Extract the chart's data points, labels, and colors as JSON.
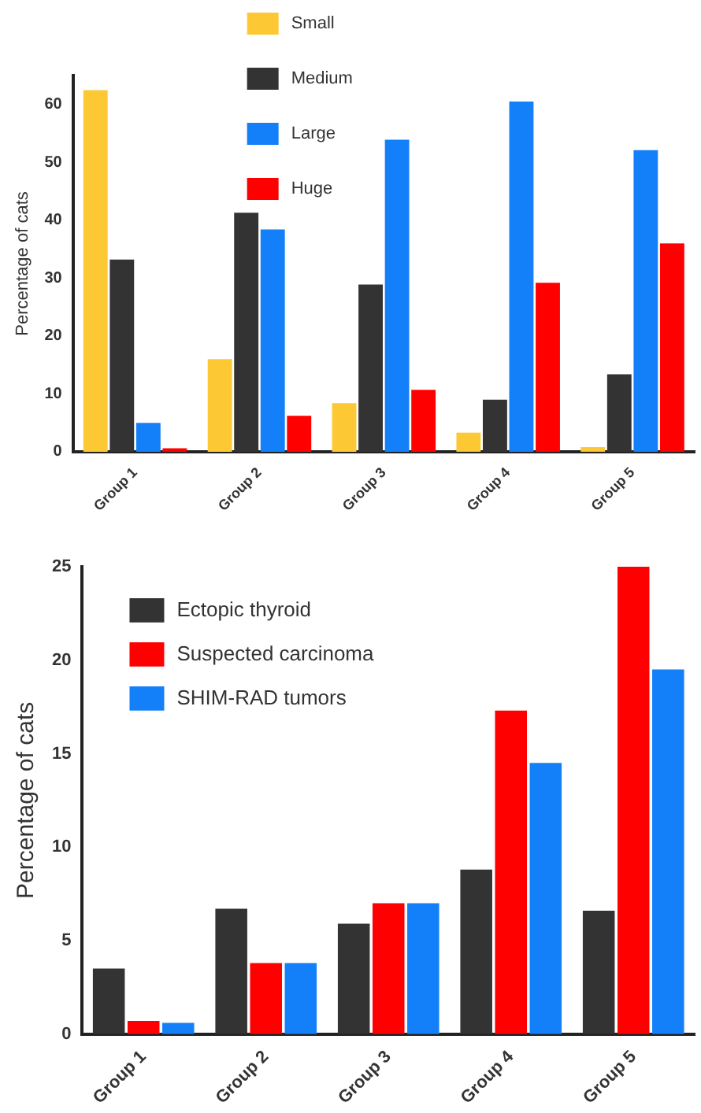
{
  "chart_data": [
    {
      "type": "bar",
      "ylabel": "Percentage of cats",
      "categories": [
        "Group 1",
        "Group 2",
        "Group 3",
        "Group 4",
        "Group 5"
      ],
      "series": [
        {
          "name": "Small",
          "color": "#fcc934",
          "values": [
            62.5,
            16,
            8.4,
            3.3,
            0.8
          ]
        },
        {
          "name": "Medium",
          "color": "#333333",
          "values": [
            33.2,
            41.3,
            28.9,
            9,
            13.4
          ]
        },
        {
          "name": "Large",
          "color": "#1380fa",
          "values": [
            5,
            38.4,
            53.9,
            60.5,
            52.1
          ]
        },
        {
          "name": "Huge",
          "color": "#ff0000",
          "values": [
            0.6,
            6.2,
            10.7,
            29.2,
            36
          ]
        }
      ],
      "ylim": [
        0,
        65
      ],
      "yticks": [
        0,
        10,
        20,
        30,
        40,
        50,
        60
      ],
      "grid": false,
      "legend": "top"
    },
    {
      "type": "bar",
      "ylabel": "Percentage of cats",
      "categories": [
        "Group 1",
        "Group 2",
        "Group 3",
        "Group 4",
        "Group 5"
      ],
      "series": [
        {
          "name": "Ectopic thyroid",
          "color": "#333333",
          "values": [
            3.5,
            6.7,
            5.9,
            8.8,
            6.6
          ]
        },
        {
          "name": "Suspected carcinoma",
          "color": "#ff0000",
          "values": [
            0.7,
            3.8,
            7.0,
            17.3,
            25
          ]
        },
        {
          "name": "SHIM-RAD tumors",
          "color": "#1380fa",
          "values": [
            0.6,
            3.8,
            7.0,
            14.5,
            19.5
          ]
        }
      ],
      "ylim": [
        0,
        25
      ],
      "yticks": [
        0,
        5,
        10,
        15,
        20,
        25
      ],
      "grid": false,
      "legend": "top left"
    }
  ]
}
